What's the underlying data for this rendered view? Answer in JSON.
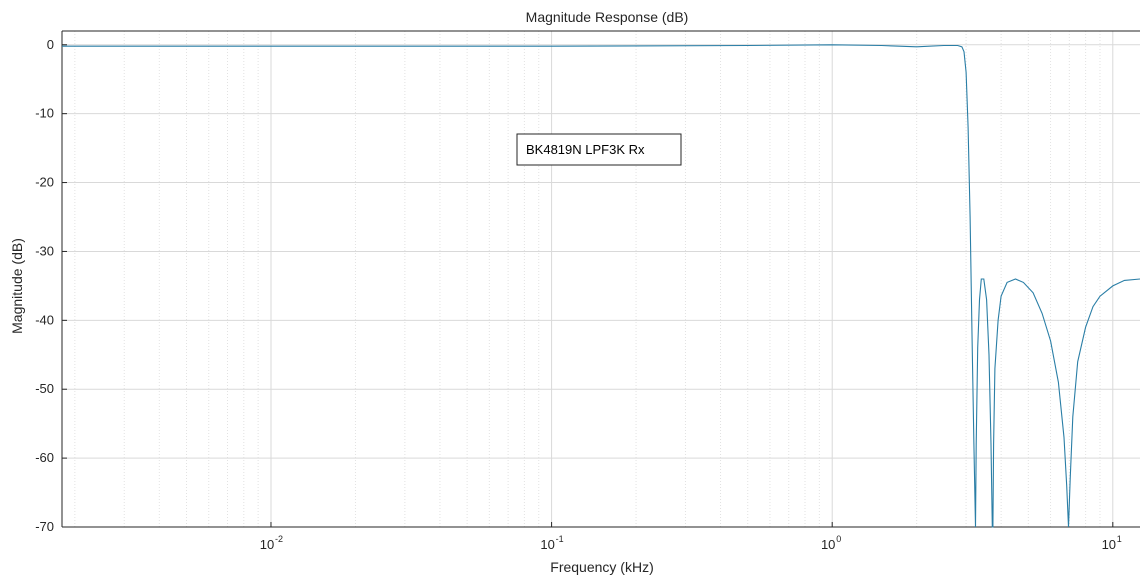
{
  "chart_data": {
    "type": "line",
    "title": "Magnitude Response (dB)",
    "xlabel": "Frequency (kHz)",
    "ylabel": "Magnitude (dB)",
    "xscale": "log",
    "xlim": [
      0.0018,
      12.5
    ],
    "ylim": [
      -70,
      2
    ],
    "grid": true,
    "x_ticks": [
      {
        "base": "10",
        "exp": "-2",
        "value": 0.01
      },
      {
        "base": "10",
        "exp": "-1",
        "value": 0.1
      },
      {
        "base": "10",
        "exp": "0",
        "value": 1
      },
      {
        "base": "10",
        "exp": "1",
        "value": 10
      }
    ],
    "y_ticks": [
      {
        "label": "0",
        "value": 0
      },
      {
        "label": "-10",
        "value": -10
      },
      {
        "label": "-20",
        "value": -20
      },
      {
        "label": "-30",
        "value": -30
      },
      {
        "label": "-40",
        "value": -40
      },
      {
        "label": "-50",
        "value": -50
      },
      {
        "label": "-60",
        "value": -60
      },
      {
        "label": "-70",
        "value": -70
      }
    ],
    "annotation": "BK4819N LPF3K Rx",
    "line_color": "#2a7ea6",
    "series": [
      {
        "x": [
          0.0018,
          0.01,
          0.1,
          0.5,
          1.0,
          1.5,
          2.0,
          2.5,
          2.8,
          2.9,
          2.95,
          3.0,
          3.05,
          3.1,
          3.15,
          3.2,
          3.24,
          3.26,
          3.3,
          3.35,
          3.4,
          3.47,
          3.55,
          3.62,
          3.68,
          3.72,
          3.74,
          3.76,
          3.8,
          3.9,
          4.0,
          4.2,
          4.5,
          4.8,
          5.2,
          5.6,
          6.0,
          6.4,
          6.7,
          6.85,
          6.95,
          7.05,
          7.2,
          7.5,
          8.0,
          8.5,
          9.0,
          10.0,
          11.0,
          12.5
        ],
        "y": [
          -0.2,
          -0.2,
          -0.2,
          -0.1,
          0.0,
          -0.1,
          -0.3,
          -0.1,
          -0.1,
          -0.3,
          -1.0,
          -4.0,
          -12.0,
          -25.0,
          -42.0,
          -58.0,
          -70.0,
          -58.0,
          -44.0,
          -37.0,
          -34.0,
          -34.0,
          -37.0,
          -45.0,
          -58.0,
          -70.0,
          -70.0,
          -58.0,
          -47.0,
          -40.0,
          -36.5,
          -34.5,
          -34.0,
          -34.5,
          -36.0,
          -39.0,
          -43.0,
          -49.0,
          -57.0,
          -64.0,
          -70.0,
          -63.0,
          -54.0,
          -46.0,
          -41.0,
          -38.0,
          -36.5,
          -35.0,
          -34.2,
          -34.0
        ]
      }
    ]
  }
}
